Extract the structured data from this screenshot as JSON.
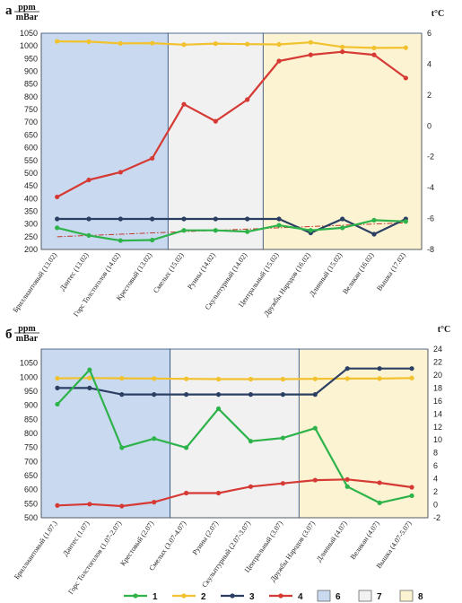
{
  "colors": {
    "s1": "#2db34a",
    "s2": "#f2c12e",
    "s3": "#2b3f63",
    "s4": "#d63a35",
    "zone6": "#c9daf0",
    "zone7": "#f1f1f1",
    "zone8": "#fcf3d2",
    "trend": "#c0392b"
  },
  "legend": [
    {
      "label": "1",
      "key": "s1",
      "kind": "line"
    },
    {
      "label": "2",
      "key": "s2",
      "kind": "line"
    },
    {
      "label": "3",
      "key": "s3",
      "kind": "line"
    },
    {
      "label": "4",
      "key": "s4",
      "kind": "line"
    },
    {
      "label": "6",
      "key": "zone6",
      "kind": "box"
    },
    {
      "label": "7",
      "key": "zone7",
      "kind": "box"
    },
    {
      "label": "8",
      "key": "zone8",
      "kind": "box"
    }
  ],
  "chart_data": [
    {
      "type": "line",
      "panel": "а",
      "left_unit_top": "ppm",
      "left_unit_bottom": "mBar",
      "right_unit": "t°C",
      "categories": [
        "Бриллиантовый (13.02)",
        "Дантес (13.02)",
        "Горс Толстоголов (14.02)",
        "Крестовый (13.02)",
        "Смелых (15.02)",
        "Руины (14.02)",
        "Скульптурный (14.02)",
        "Центральный (15.02)",
        "Дружбы Народов (16.02)",
        "Длинный (15.02)",
        "Великан (16.02)",
        "Вышка (17.02)"
      ],
      "left_ylim": [
        200,
        1050
      ],
      "left_ticks": [
        200,
        250,
        300,
        350,
        400,
        450,
        500,
        550,
        600,
        650,
        700,
        750,
        800,
        850,
        900,
        950,
        1000,
        1050
      ],
      "right_ylim": [
        -8,
        6
      ],
      "right_ticks": [
        -8,
        -6,
        -4,
        -2,
        0,
        2,
        4,
        6
      ],
      "zones": [
        {
          "key": "zone6",
          "from": 0,
          "to": 3
        },
        {
          "key": "zone7",
          "from": 4,
          "to": 6
        },
        {
          "key": "zone8",
          "from": 7,
          "to": 11
        }
      ],
      "series": [
        {
          "key": "s2",
          "axis": "left",
          "values": [
            1018,
            1017,
            1010,
            1011,
            1005,
            1009,
            1007,
            1006,
            1014,
            996,
            992,
            993
          ]
        },
        {
          "key": "s4",
          "axis": "right",
          "values": [
            -4.6,
            -3.5,
            -3.0,
            -2.1,
            1.4,
            0.3,
            1.7,
            4.2,
            4.6,
            4.8,
            4.6,
            3.1
          ]
        },
        {
          "key": "s3",
          "axis": "left",
          "values": [
            320,
            320,
            320,
            320,
            320,
            320,
            320,
            320,
            265,
            320,
            260,
            320
          ]
        },
        {
          "key": "s1",
          "axis": "left",
          "values": [
            285,
            255,
            235,
            237,
            275,
            275,
            270,
            295,
            275,
            285,
            315,
            310
          ]
        }
      ],
      "trend": {
        "axis": "left",
        "from": 250,
        "to": 305
      }
    },
    {
      "type": "line",
      "panel": "б",
      "left_unit_top": "ppm",
      "left_unit_bottom": "mBar",
      "right_unit": "t°C",
      "categories": [
        "Бриллиантовый (1.07.)",
        "Дантес (1.07)",
        "Горс Толстоголов (1.07-2.07)",
        "Крестовый (2.07)",
        "Смелых (3.07-4.07)",
        "Руины (2.07)",
        "Скульптурный (2.07-3.07)",
        "Центральный (3.07)",
        "Дружбы Народов (3.07)",
        "Длинный (4.07)",
        "Великан (4.07)",
        "Вышка (4.07-5.07)"
      ],
      "left_ylim": [
        500,
        1100
      ],
      "left_ticks": [
        500,
        550,
        600,
        650,
        700,
        750,
        800,
        850,
        900,
        950,
        1000,
        1050
      ],
      "right_ylim": [
        -2,
        24
      ],
      "right_ticks": [
        -2,
        0,
        2,
        4,
        6,
        8,
        10,
        12,
        14,
        16,
        18,
        20,
        22,
        24
      ],
      "zones": [
        {
          "key": "zone6",
          "from": 0,
          "to": 3
        },
        {
          "key": "zone7",
          "from": 4,
          "to": 7
        },
        {
          "key": "zone8",
          "from": 8,
          "to": 11
        }
      ],
      "series": [
        {
          "key": "s2",
          "axis": "left",
          "values": [
            996,
            997,
            996,
            995,
            994,
            993,
            993,
            993,
            994,
            995,
            995,
            997
          ]
        },
        {
          "key": "s3",
          "axis": "right",
          "values": [
            18,
            18,
            17,
            17,
            17,
            17,
            17,
            17,
            17,
            21,
            21,
            21
          ]
        },
        {
          "key": "s1",
          "axis": "right",
          "values": [
            15.5,
            20.8,
            8.8,
            10.2,
            8.8,
            14.8,
            9.8,
            10.3,
            11.8,
            2.8,
            0.3,
            1.4
          ]
        },
        {
          "key": "s4",
          "axis": "right",
          "values": [
            -0.1,
            0.1,
            -0.2,
            0.4,
            1.8,
            1.8,
            2.8,
            3.3,
            3.8,
            3.9,
            3.4,
            2.7
          ]
        }
      ]
    }
  ]
}
